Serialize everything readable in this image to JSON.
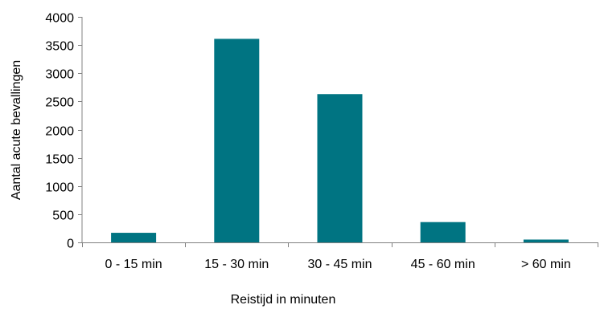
{
  "chart_data": {
    "type": "bar",
    "title": "",
    "xlabel": "Reistijd in minuten",
    "ylabel": "Aantal acute bevallingen",
    "categories": [
      "0 - 15 min",
      "15 - 30 min",
      "30 - 45 min",
      "45 - 60 min",
      "> 60 min"
    ],
    "series": [
      {
        "values": [
          170,
          3610,
          2630,
          360,
          50
        ],
        "color": "#007482"
      }
    ],
    "ylim": [
      0,
      4000
    ],
    "yticks": [
      "0",
      "500",
      "1000",
      "1500",
      "2000",
      "2500",
      "3000",
      "3500",
      "4000"
    ],
    "grid": false,
    "legend": "none"
  }
}
